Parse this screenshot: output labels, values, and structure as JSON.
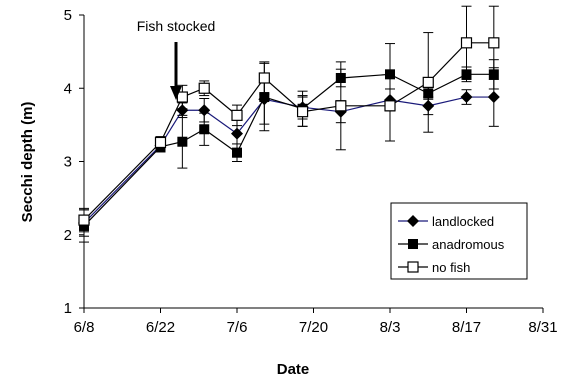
{
  "chart_data": {
    "type": "line",
    "xlabel": "Date",
    "ylabel": "Secchi depth (m)",
    "x_ticks": [
      "6/8",
      "6/22",
      "7/6",
      "7/20",
      "8/3",
      "8/17",
      "8/31"
    ],
    "x_tick_days": [
      0,
      14,
      28,
      42,
      56,
      70,
      84
    ],
    "y_ticks": [
      "1",
      "2",
      "3",
      "4",
      "5"
    ],
    "ylim": [
      1,
      5
    ],
    "grid": false,
    "legend_position": "bottom-right",
    "annotation": {
      "text": "Fish stocked",
      "x": "6/26"
    },
    "x": [
      "6/8",
      "6/22",
      "6/26",
      "6/30",
      "7/6",
      "7/11",
      "7/18",
      "7/25",
      "8/3",
      "8/10",
      "8/17",
      "8/22"
    ],
    "x_days": [
      0,
      14,
      18,
      22,
      28,
      33,
      40,
      47,
      56,
      63,
      70,
      75
    ],
    "series": [
      {
        "name": "landlocked",
        "marker": "diamond",
        "line_color": "#1a1a7a",
        "values": [
          2.16,
          3.22,
          3.7,
          3.7,
          3.38,
          3.85,
          3.74,
          3.68,
          3.84,
          3.76,
          3.88,
          3.88
        ],
        "errors": [
          0.18,
          0.06,
          0.1,
          0.16,
          0.2,
          0.34,
          0.16,
          0.15,
          0.15,
          0.12,
          0.1,
          0.4
        ]
      },
      {
        "name": "anadromous",
        "marker": "square-filled",
        "line_color": "#000000",
        "values": [
          2.12,
          3.2,
          3.27,
          3.44,
          3.12,
          3.88,
          3.72,
          4.14,
          4.19,
          3.93,
          4.19,
          4.19
        ],
        "errors": [
          0.22,
          0.07,
          0.36,
          0.22,
          0.12,
          0.46,
          0.24,
          0.12,
          0.42,
          0.08,
          0.1,
          0.2
        ]
      },
      {
        "name": "no fish",
        "marker": "square-open",
        "line_color": "#000000",
        "values": [
          2.2,
          3.26,
          3.88,
          4.0,
          3.63,
          4.14,
          3.68,
          3.76,
          3.76,
          4.08,
          4.62,
          4.62
        ],
        "errors": [
          0.16,
          0.08,
          0.16,
          0.1,
          0.14,
          0.22,
          0.2,
          0.6,
          0.48,
          0.68,
          0.5,
          0.5
        ]
      }
    ]
  }
}
